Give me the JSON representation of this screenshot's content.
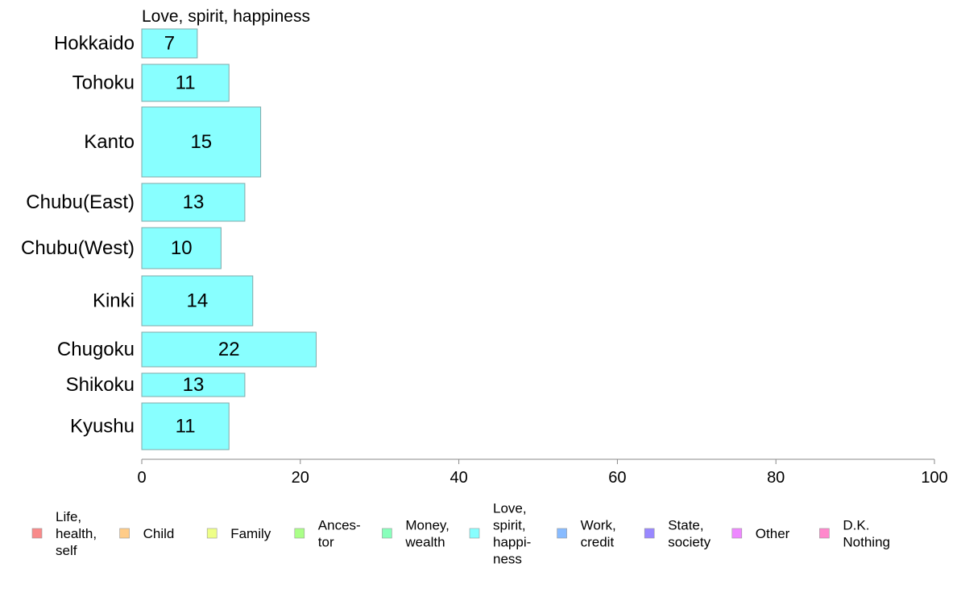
{
  "chart_data": {
    "type": "bar",
    "orientation": "horizontal",
    "panel_title": "Love, spirit, happiness",
    "categories": [
      "Hokkaido",
      "Tohoku",
      "Kanto",
      "Chubu(East)",
      "Chubu(West)",
      "Kinki",
      "Chugoku",
      "Shikoku",
      "Kyushu"
    ],
    "values": [
      7,
      11,
      15,
      13,
      10,
      14,
      22,
      13,
      11
    ],
    "value_labels": [
      "7",
      "11",
      "15",
      "13",
      "10",
      "14",
      "22",
      "13",
      "11"
    ],
    "bar_color": "#88ffff",
    "bar_border_color": "#7fa8a8",
    "xlim": [
      0,
      100
    ],
    "x_ticks": [
      0,
      20,
      40,
      60,
      80,
      100
    ],
    "x_tick_labels": [
      "0",
      "20",
      "40",
      "60",
      "80",
      "100"
    ],
    "grid": false,
    "legend_position": "bottom",
    "legend": [
      {
        "lines": [
          "Life,",
          "health,",
          "self"
        ],
        "color": "#f88a8a"
      },
      {
        "lines": [
          "Child"
        ],
        "color": "#ffcc88"
      },
      {
        "lines": [
          "Family"
        ],
        "color": "#eeff88"
      },
      {
        "lines": [
          "Ances-",
          "tor"
        ],
        "color": "#aaff88"
      },
      {
        "lines": [
          "Money,",
          "wealth"
        ],
        "color": "#88ffbb"
      },
      {
        "lines": [
          "Love,",
          "spirit,",
          "happi-",
          "ness"
        ],
        "color": "#88ffff"
      },
      {
        "lines": [
          "Work,",
          "credit"
        ],
        "color": "#88bbff"
      },
      {
        "lines": [
          "State,",
          "society"
        ],
        "color": "#9988ff"
      },
      {
        "lines": [
          "Other"
        ],
        "color": "#ee88ff"
      },
      {
        "lines": [
          "D.K.",
          "Nothing"
        ],
        "color": "#ff88cc"
      }
    ]
  }
}
